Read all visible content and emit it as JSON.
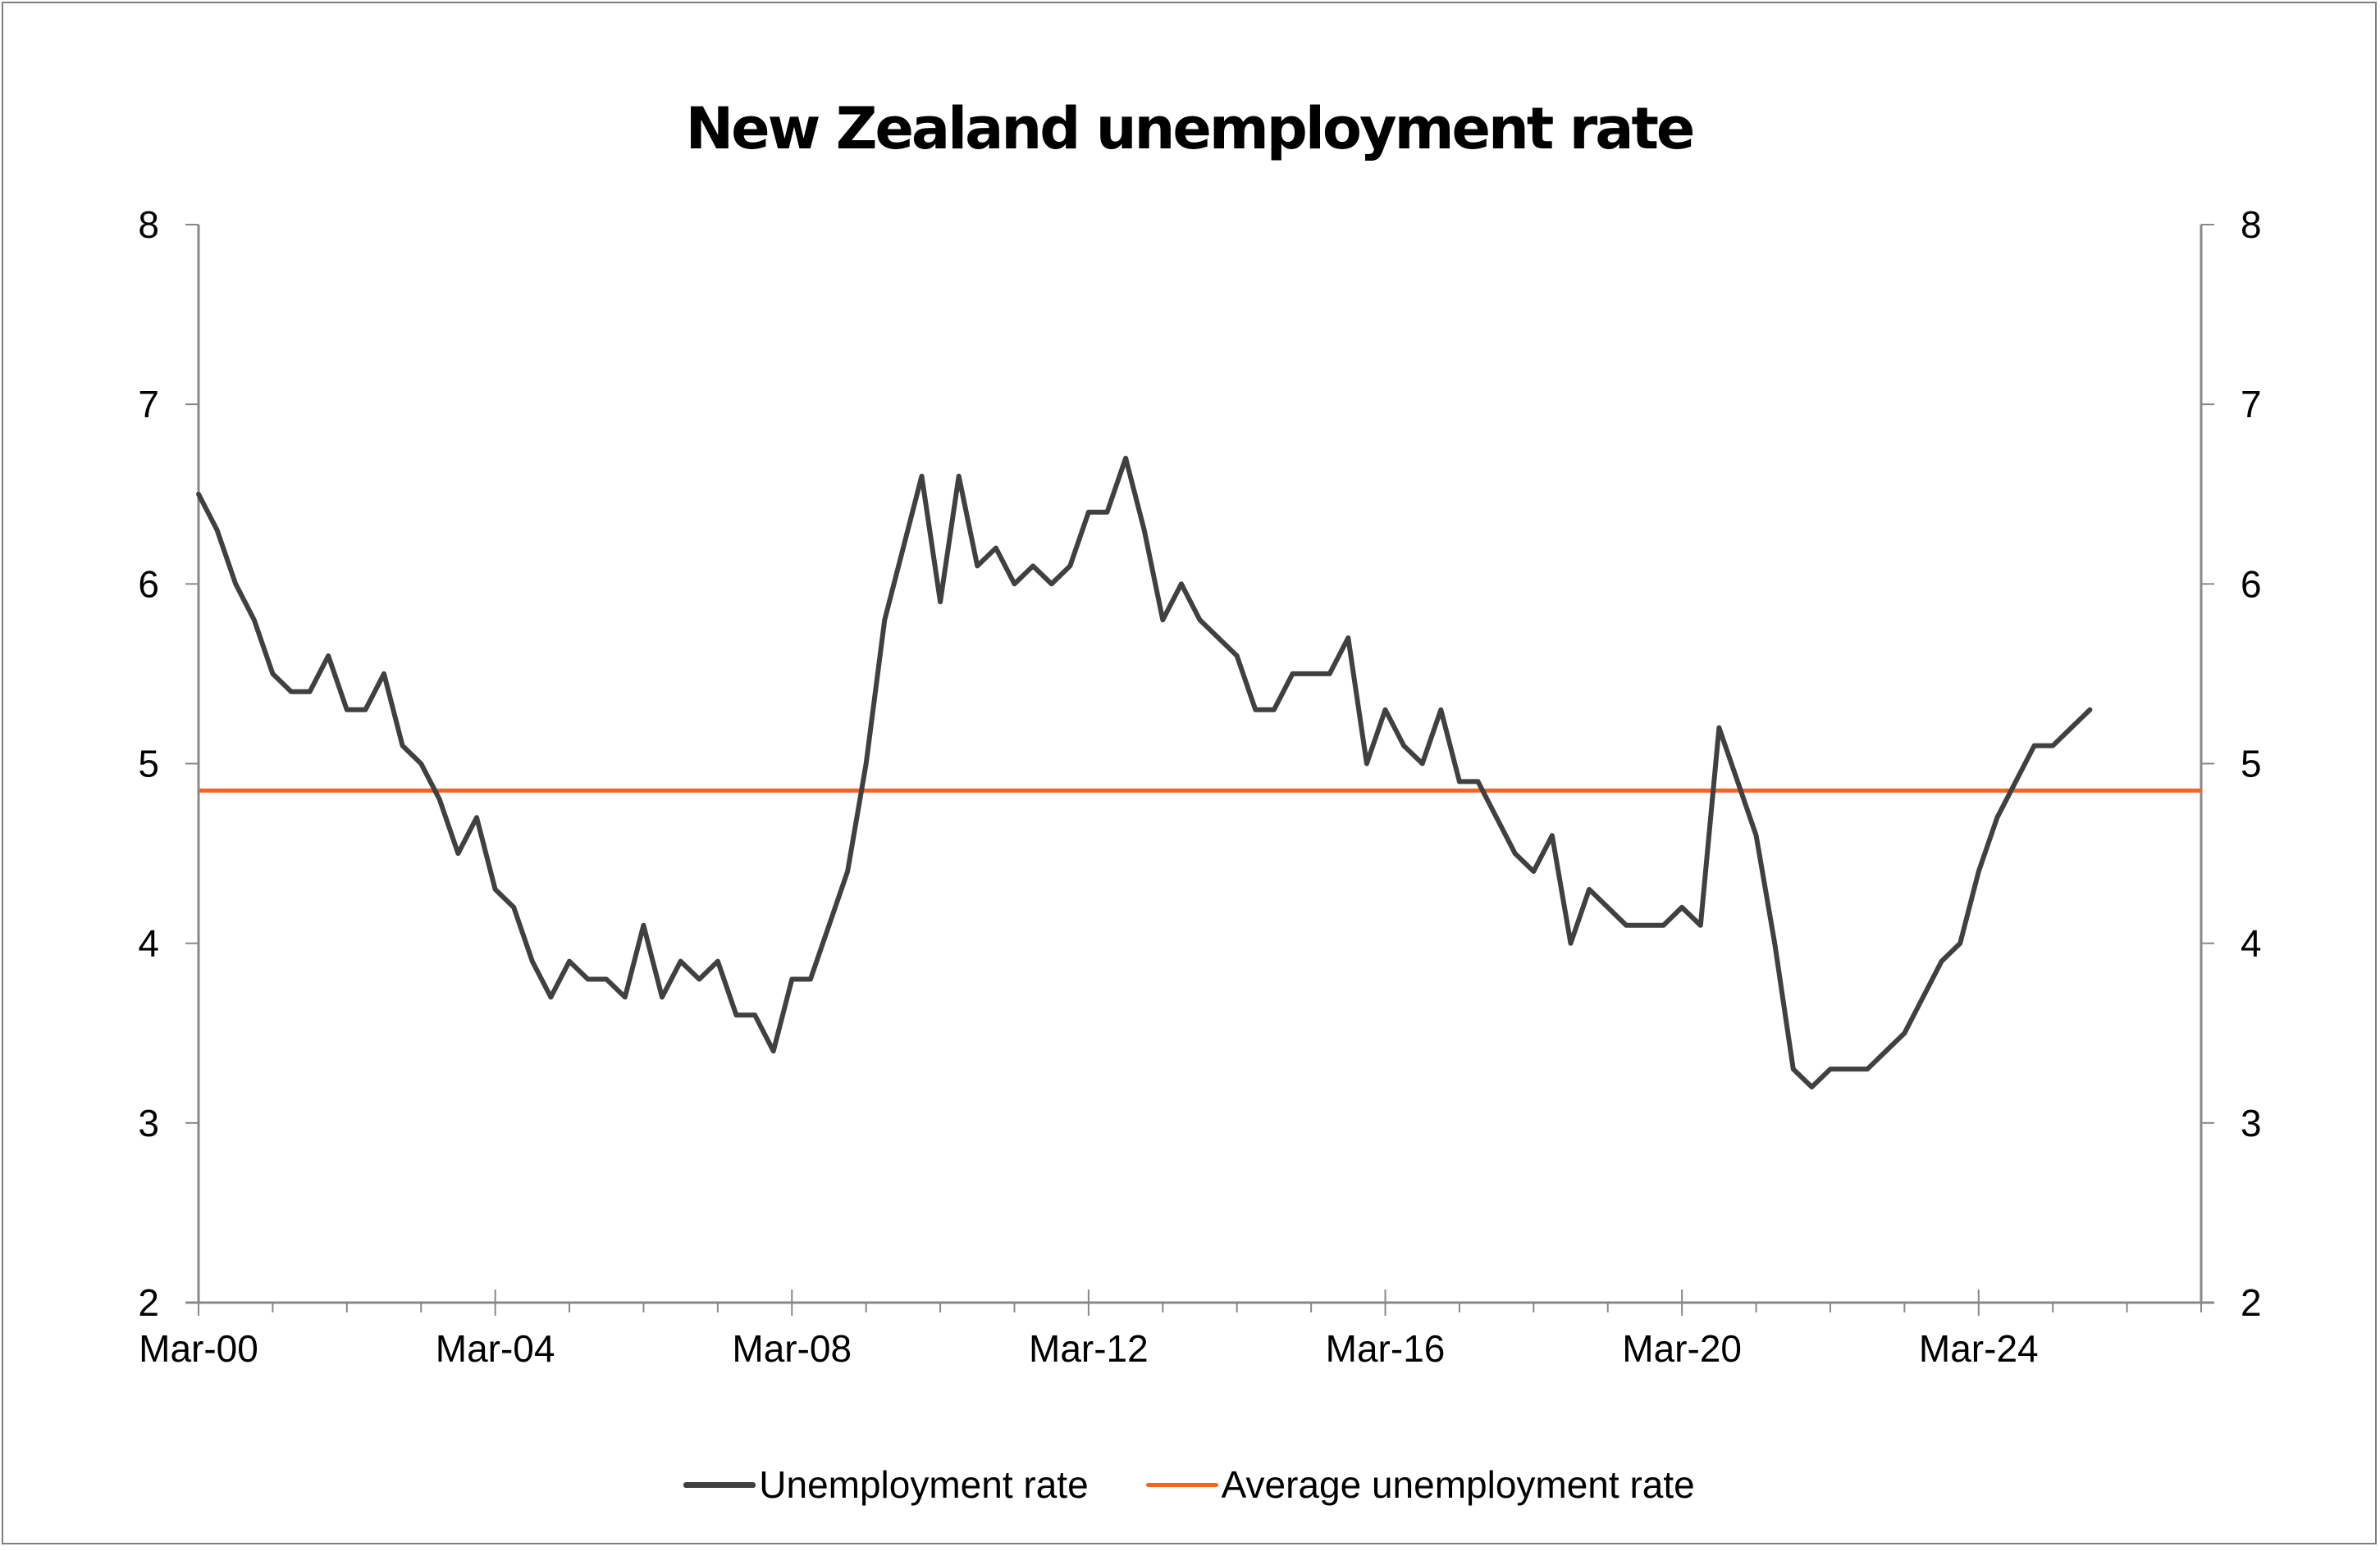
{
  "chart_data": {
    "type": "line",
    "title": "New Zealand unemployment rate",
    "xlabel": "",
    "ylabel": "",
    "ylim": [
      2,
      8
    ],
    "y_ticks": [
      2,
      3,
      4,
      5,
      6,
      7,
      8
    ],
    "secondary_y_ticks": [
      2,
      3,
      4,
      5,
      6,
      7,
      8
    ],
    "x_tick_labels": [
      "Mar-00",
      "Mar-04",
      "Mar-08",
      "Mar-12",
      "Mar-16",
      "Mar-20",
      "Mar-24"
    ],
    "x_range_quarters": 108,
    "grid": false,
    "legend_position": "bottom",
    "series": [
      {
        "name": "Unemployment rate",
        "color": "#404040",
        "start": "Mar-00",
        "frequency": "quarterly",
        "values": [
          6.5,
          6.3,
          6.0,
          5.8,
          5.5,
          5.4,
          5.4,
          5.6,
          5.3,
          5.3,
          5.5,
          5.1,
          5.0,
          4.8,
          4.5,
          4.7,
          4.3,
          4.2,
          3.9,
          3.7,
          3.9,
          3.8,
          3.8,
          3.7,
          4.1,
          3.7,
          3.9,
          3.8,
          3.9,
          3.6,
          3.6,
          3.4,
          3.8,
          3.8,
          4.1,
          4.4,
          5.0,
          5.8,
          6.2,
          6.6,
          5.9,
          6.6,
          6.1,
          6.2,
          6.0,
          6.1,
          6.0,
          6.1,
          6.4,
          6.4,
          6.7,
          6.3,
          5.8,
          6.0,
          5.8,
          5.7,
          5.6,
          5.3,
          5.3,
          5.5,
          5.5,
          5.5,
          5.7,
          5.0,
          5.3,
          5.1,
          5.0,
          5.3,
          4.9,
          4.9,
          4.7,
          4.5,
          4.4,
          4.6,
          4.0,
          4.3,
          4.2,
          4.1,
          4.1,
          4.1,
          4.2,
          4.1,
          5.2,
          4.9,
          4.6,
          4.0,
          3.3,
          3.2,
          3.3,
          3.3,
          3.3,
          3.4,
          3.5,
          3.7,
          3.9,
          4.0,
          4.4,
          4.7,
          4.9,
          5.1,
          5.1,
          5.2,
          5.3
        ]
      },
      {
        "name": "Average unemployment rate",
        "color": "#f26522",
        "values_constant": 4.85
      }
    ]
  },
  "legend": {
    "items": [
      {
        "label": "Unemployment rate",
        "color": "#404040"
      },
      {
        "label": "Average unemployment rate",
        "color": "#f26522"
      }
    ]
  }
}
